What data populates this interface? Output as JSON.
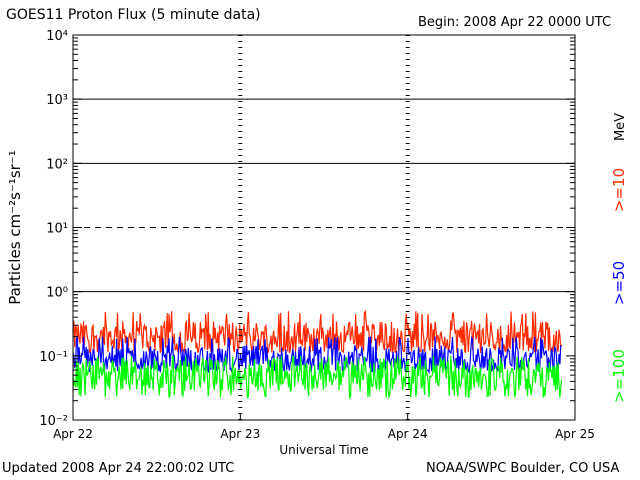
{
  "header": {
    "title": "GOES11 Proton Flux (5 minute data)",
    "begin": "Begin: 2008 Apr 22 0000 UTC"
  },
  "footer": {
    "updated": "Updated 2008 Apr 24 22:00:02 UTC",
    "source": "NOAA/SWPC Boulder, CO USA"
  },
  "chart_data": {
    "type": "line",
    "title": "GOES11 Proton Flux (5 minute data)",
    "xlabel": "Universal Time",
    "ylabel": "Particles cm⁻²s⁻¹sr⁻¹",
    "yscale": "log",
    "ylim": [
      0.01,
      10000
    ],
    "xlim": [
      0,
      3
    ],
    "x_ticks": [
      "Apr 22",
      "Apr 23",
      "Apr 24",
      "Apr 25"
    ],
    "y_ticks": [
      "10⁻²",
      "10⁻¹",
      "10⁰",
      "10¹",
      "10²",
      "10³",
      "10⁴"
    ],
    "y_tick_values": [
      0.01,
      0.1,
      1,
      10,
      100,
      1000,
      10000
    ],
    "threshold_lines": [
      {
        "value": 1,
        "style": "solid"
      },
      {
        "value": 10,
        "style": "dashed"
      },
      {
        "value": 100,
        "style": "solid"
      },
      {
        "value": 1000,
        "style": "solid"
      }
    ],
    "day_markers": [
      1,
      2
    ],
    "x_data_end": 2.92,
    "legend_placement": "right",
    "legend_unit": "MeV",
    "series": [
      {
        "name": ">=10",
        "color": "#ff2a00",
        "typical": 0.2,
        "min": 0.11,
        "max": 0.5
      },
      {
        "name": ">=50",
        "color": "#0000ff",
        "typical": 0.09,
        "min": 0.055,
        "max": 0.2
      },
      {
        "name": ">=100",
        "color": "#00ff00",
        "typical": 0.05,
        "min": 0.022,
        "max": 0.1
      }
    ]
  }
}
